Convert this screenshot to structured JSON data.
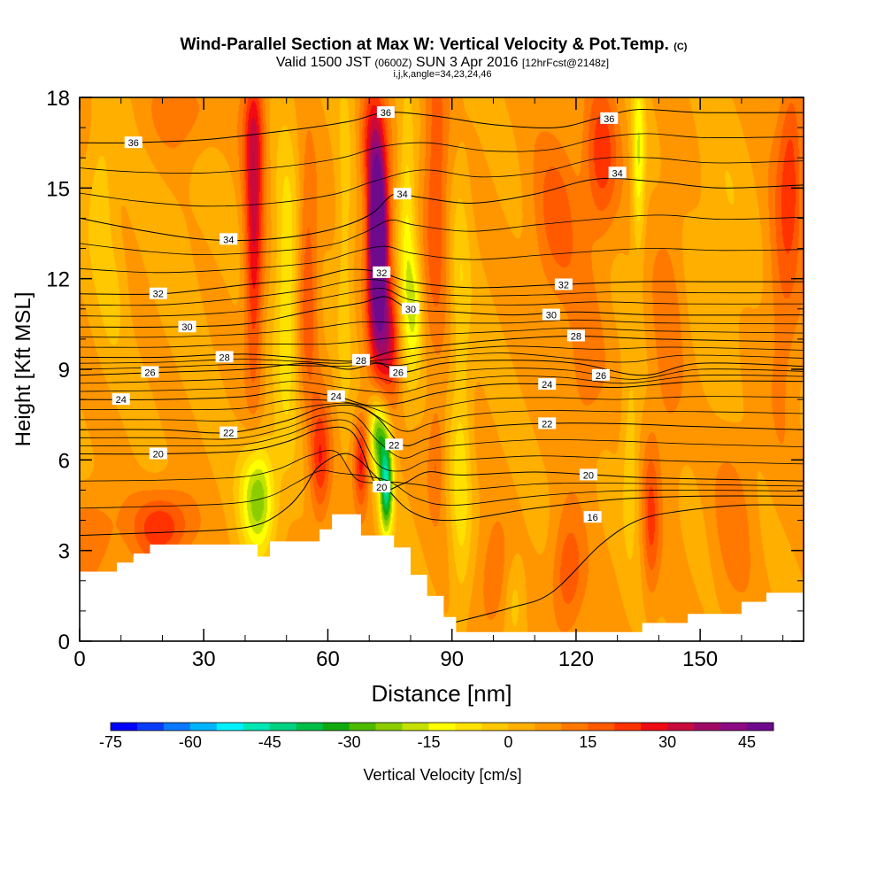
{
  "header": {
    "title_main": "Wind-Parallel Section at Max W: Vertical Velocity & Pot.Temp.",
    "title_mark": "(C)",
    "sub_a": "Valid 1500 JST",
    "sub_b": "(0600Z)",
    "sub_c": "SUN 3 Apr 2016",
    "sub_d": "[12hrFcst@2148z]",
    "sub_line2": "i,j,k,angle=34,23,24,46"
  },
  "chart_data": {
    "type": "heatmap",
    "xlabel": "Distance [nm]",
    "ylabel": "Height [Kft MSL]",
    "xlim": [
      0,
      175
    ],
    "ylim": [
      0,
      18
    ],
    "xticks": [
      0,
      30,
      60,
      90,
      120,
      150
    ],
    "yticks": [
      0,
      3,
      6,
      9,
      12,
      15,
      18
    ],
    "colorbar": {
      "label": "Vertical Velocity [cm/s]",
      "placement": "bottom",
      "tick_labels": [
        "-75",
        "-60",
        "-45",
        "-30",
        "-15",
        "0",
        "15",
        "30",
        "45"
      ],
      "tick_values": [
        -75,
        -60,
        -45,
        -30,
        -15,
        0,
        15,
        30,
        45
      ],
      "range": [
        -75,
        50
      ],
      "colors": [
        "#0000ff",
        "#0a3cff",
        "#0a78ff",
        "#00b4ff",
        "#00f0ff",
        "#00e6b4",
        "#00d282",
        "#00be46",
        "#10aa10",
        "#4eba00",
        "#8ccd00",
        "#c4e100",
        "#ffff00",
        "#ffe100",
        "#ffc800",
        "#ffaf00",
        "#ff9600",
        "#ff7800",
        "#ff5a00",
        "#ff3200",
        "#f00a14",
        "#c80a3c",
        "#a00a64",
        "#8c0a82",
        "#6e0a8c"
      ]
    },
    "terrain": [
      [
        0,
        2.3
      ],
      [
        7,
        2.3
      ],
      [
        9,
        2.6
      ],
      [
        13,
        2.9
      ],
      [
        17,
        3.2
      ],
      [
        40,
        3.2
      ],
      [
        43,
        2.8
      ],
      [
        46,
        3.3
      ],
      [
        55,
        3.3
      ],
      [
        58,
        3.7
      ],
      [
        61,
        4.2
      ],
      [
        66,
        4.2
      ],
      [
        68,
        3.5
      ],
      [
        72,
        3.5
      ],
      [
        76,
        3.1
      ],
      [
        80,
        2.2
      ],
      [
        84,
        1.5
      ],
      [
        88,
        0.8
      ],
      [
        91,
        0.3
      ],
      [
        133,
        0.3
      ],
      [
        136,
        0.6
      ],
      [
        147,
        0.9
      ],
      [
        160,
        1.3
      ],
      [
        166,
        1.6
      ],
      [
        175,
        1.6
      ]
    ],
    "contours": [
      {
        "label": "16",
        "points": [
          [
            90,
            0.6
          ],
          [
            104,
            1.1
          ],
          [
            114,
            1.6
          ],
          [
            126,
            3.2
          ],
          [
            135,
            4.0
          ],
          [
            145,
            4.3
          ],
          [
            160,
            4.5
          ],
          [
            175,
            4.5
          ]
        ],
        "label_at": [
          124,
          4.1
        ]
      },
      {
        "label": "18",
        "points": [
          [
            0,
            3.5
          ],
          [
            20,
            3.6
          ],
          [
            36,
            3.7
          ],
          [
            44,
            3.9
          ],
          [
            50,
            4.4
          ],
          [
            54,
            5.0
          ],
          [
            58,
            5.8
          ],
          [
            65,
            6.2
          ],
          [
            72,
            5.4
          ],
          [
            80,
            4.3
          ],
          [
            90,
            4.0
          ],
          [
            110,
            4.4
          ],
          [
            130,
            4.7
          ],
          [
            150,
            4.8
          ],
          [
            175,
            4.8
          ]
        ],
        "label_at": null
      },
      {
        "label": "20",
        "points": [
          [
            0,
            6.2
          ],
          [
            20,
            6.2
          ],
          [
            40,
            6.3
          ],
          [
            50,
            6.6
          ],
          [
            58,
            7.0
          ],
          [
            66,
            6.9
          ],
          [
            72,
            5.1
          ],
          [
            78,
            5.2
          ],
          [
            84,
            5.6
          ],
          [
            92,
            5.5
          ],
          [
            110,
            5.6
          ],
          [
            125,
            5.5
          ],
          [
            140,
            5.4
          ],
          [
            175,
            5.3
          ]
        ],
        "label_at": [
          73,
          5.1
        ]
      },
      {
        "label": "22",
        "points": [
          [
            0,
            7.0
          ],
          [
            20,
            7.0
          ],
          [
            36,
            6.9
          ],
          [
            50,
            7.3
          ],
          [
            58,
            7.7
          ],
          [
            66,
            7.8
          ],
          [
            72,
            7.4
          ],
          [
            78,
            6.5
          ],
          [
            84,
            6.7
          ],
          [
            92,
            7.0
          ],
          [
            110,
            7.2
          ],
          [
            130,
            7.2
          ],
          [
            150,
            7.1
          ],
          [
            175,
            7.0
          ]
        ],
        "label_at": [
          76,
          6.5
        ]
      },
      {
        "label": "24",
        "points": [
          [
            0,
            8.0
          ],
          [
            20,
            8.0
          ],
          [
            40,
            8.1
          ],
          [
            50,
            8.3
          ],
          [
            62,
            8.1
          ],
          [
            70,
            7.8
          ],
          [
            78,
            7.9
          ],
          [
            86,
            8.2
          ],
          [
            100,
            8.5
          ],
          [
            115,
            8.5
          ],
          [
            130,
            8.4
          ],
          [
            150,
            8.6
          ],
          [
            175,
            8.6
          ]
        ],
        "label_at": [
          62,
          8.1
        ]
      },
      {
        "label": "26",
        "points": [
          [
            0,
            8.8
          ],
          [
            20,
            8.9
          ],
          [
            40,
            9.0
          ],
          [
            55,
            9.2
          ],
          [
            65,
            9.0
          ],
          [
            72,
            9.2
          ],
          [
            78,
            8.9
          ],
          [
            88,
            9.2
          ],
          [
            104,
            9.3
          ],
          [
            120,
            9.2
          ],
          [
            136,
            8.8
          ],
          [
            150,
            9.2
          ],
          [
            175,
            9.1
          ]
        ],
        "label_at": [
          77,
          8.9
        ]
      },
      {
        "label": "28",
        "points": [
          [
            0,
            9.4
          ],
          [
            20,
            9.4
          ],
          [
            40,
            9.5
          ],
          [
            60,
            9.3
          ],
          [
            68,
            9.3
          ],
          [
            76,
            9.6
          ],
          [
            88,
            9.8
          ],
          [
            104,
            10.0
          ],
          [
            120,
            10.1
          ],
          [
            140,
            10.0
          ],
          [
            175,
            9.9
          ]
        ],
        "label_at": [
          68,
          9.3
        ]
      },
      {
        "label": "30",
        "points": [
          [
            0,
            10.4
          ],
          [
            20,
            10.4
          ],
          [
            40,
            10.5
          ],
          [
            55,
            10.9
          ],
          [
            68,
            11.2
          ],
          [
            74,
            11.4
          ],
          [
            80,
            11.0
          ],
          [
            90,
            10.9
          ],
          [
            105,
            10.8
          ],
          [
            120,
            10.9
          ],
          [
            140,
            10.8
          ],
          [
            175,
            10.8
          ]
        ],
        "label_at": [
          80,
          11.0
        ]
      },
      {
        "label": "32",
        "points": [
          [
            0,
            11.5
          ],
          [
            20,
            11.5
          ],
          [
            40,
            11.8
          ],
          [
            55,
            12.0
          ],
          [
            65,
            12.3
          ],
          [
            73,
            12.2
          ],
          [
            80,
            11.9
          ],
          [
            95,
            11.7
          ],
          [
            115,
            11.8
          ],
          [
            135,
            11.9
          ],
          [
            155,
            11.9
          ],
          [
            175,
            11.9
          ]
        ],
        "label_at": [
          73,
          12.2
        ]
      },
      {
        "label": "34",
        "points": [
          [
            0,
            14.0
          ],
          [
            15,
            13.6
          ],
          [
            30,
            13.3
          ],
          [
            45,
            13.3
          ],
          [
            60,
            13.6
          ],
          [
            70,
            14.1
          ],
          [
            76,
            14.8
          ],
          [
            82,
            14.7
          ],
          [
            95,
            14.5
          ],
          [
            110,
            14.8
          ],
          [
            125,
            15.3
          ],
          [
            140,
            15.2
          ],
          [
            155,
            15.0
          ],
          [
            175,
            15.1
          ]
        ],
        "label_at": [
          78,
          14.8
        ]
      },
      {
        "label": "36",
        "points": [
          [
            0,
            16.5
          ],
          [
            12,
            16.5
          ],
          [
            30,
            16.6
          ],
          [
            50,
            16.9
          ],
          [
            65,
            17.2
          ],
          [
            74,
            17.5
          ],
          [
            85,
            17.4
          ],
          [
            100,
            17.1
          ],
          [
            115,
            17.0
          ],
          [
            125,
            17.3
          ],
          [
            135,
            17.6
          ],
          [
            150,
            17.5
          ],
          [
            175,
            17.5
          ]
        ],
        "label_at": [
          13,
          16.5
        ]
      }
    ],
    "extra_labels": [
      {
        "text": "36",
        "at": [
          74,
          17.5
        ]
      },
      {
        "text": "36",
        "at": [
          128,
          17.3
        ]
      },
      {
        "text": "34",
        "at": [
          130,
          15.5
        ]
      },
      {
        "text": "34",
        "at": [
          36,
          13.3
        ]
      },
      {
        "text": "32",
        "at": [
          19,
          11.5
        ]
      },
      {
        "text": "32",
        "at": [
          117,
          11.8
        ]
      },
      {
        "text": "30",
        "at": [
          26,
          10.4
        ]
      },
      {
        "text": "30",
        "at": [
          114,
          10.8
        ]
      },
      {
        "text": "28",
        "at": [
          35,
          9.4
        ]
      },
      {
        "text": "28",
        "at": [
          120,
          10.1
        ]
      },
      {
        "text": "26",
        "at": [
          17,
          8.9
        ]
      },
      {
        "text": "26",
        "at": [
          126,
          8.8
        ]
      },
      {
        "text": "24",
        "at": [
          10,
          8.0
        ]
      },
      {
        "text": "24",
        "at": [
          113,
          8.5
        ]
      },
      {
        "text": "22",
        "at": [
          36,
          6.9
        ]
      },
      {
        "text": "22",
        "at": [
          113,
          7.2
        ]
      },
      {
        "text": "20",
        "at": [
          19,
          6.2
        ]
      },
      {
        "text": "20",
        "at": [
          123,
          5.5
        ]
      }
    ],
    "w_field": [
      {
        "x": 5,
        "y": 14.5,
        "w": -10,
        "sx": 3,
        "sy": 2.5
      },
      {
        "x": 8,
        "y": 11.5,
        "w": -6,
        "sx": 3,
        "sy": 2.0
      },
      {
        "x": 3,
        "y": 3.5,
        "w": 10,
        "sx": 6,
        "sy": 1.5
      },
      {
        "x": 20,
        "y": 3.8,
        "w": 20,
        "sx": 7,
        "sy": 1.2
      },
      {
        "x": 25,
        "y": 15,
        "w": -2,
        "sx": 10,
        "sy": 5
      },
      {
        "x": 25,
        "y": 17.5,
        "w": 10,
        "sx": 8,
        "sy": 1.5
      },
      {
        "x": 42,
        "y": 13.5,
        "w": 25,
        "sx": 2.2,
        "sy": 5
      },
      {
        "x": 42,
        "y": 17,
        "w": 12,
        "sx": 3,
        "sy": 2
      },
      {
        "x": 43,
        "y": 4.8,
        "w": -30,
        "sx": 4,
        "sy": 1.8
      },
      {
        "x": 50,
        "y": 11.5,
        "w": -15,
        "sx": 3,
        "sy": 5
      },
      {
        "x": 55,
        "y": 12,
        "w": 15,
        "sx": 2.5,
        "sy": 4
      },
      {
        "x": 58,
        "y": 6.0,
        "w": 20,
        "sx": 2.5,
        "sy": 2
      },
      {
        "x": 64,
        "y": 13,
        "w": -8,
        "sx": 2,
        "sy": 6
      },
      {
        "x": 68,
        "y": 6.0,
        "w": 22,
        "sx": 1.8,
        "sy": 1.5
      },
      {
        "x": 72,
        "y": 14,
        "w": 48,
        "sx": 2.2,
        "sy": 2
      },
      {
        "x": 72,
        "y": 11.5,
        "w": 40,
        "sx": 2.5,
        "sy": 2.5
      },
      {
        "x": 71,
        "y": 16.5,
        "w": 25,
        "sx": 3,
        "sy": 2
      },
      {
        "x": 75,
        "y": 10,
        "w": 20,
        "sx": 2.5,
        "sy": 2
      },
      {
        "x": 74,
        "y": 5.2,
        "w": -50,
        "sx": 1.6,
        "sy": 1.6
      },
      {
        "x": 72,
        "y": 6.8,
        "w": -30,
        "sx": 2,
        "sy": 1.2
      },
      {
        "x": 79,
        "y": 13,
        "w": -18,
        "sx": 2,
        "sy": 4
      },
      {
        "x": 81,
        "y": 11,
        "w": -15,
        "sx": 1.8,
        "sy": 2
      },
      {
        "x": 86,
        "y": 15,
        "w": 15,
        "sx": 3,
        "sy": 5
      },
      {
        "x": 86,
        "y": 6,
        "w": 10,
        "sx": 2,
        "sy": 2
      },
      {
        "x": 92,
        "y": 5,
        "w": -12,
        "sx": 2.5,
        "sy": 4
      },
      {
        "x": 92,
        "y": 12,
        "w": -8,
        "sx": 2.5,
        "sy": 4
      },
      {
        "x": 100,
        "y": 2,
        "w": 10,
        "sx": 4,
        "sy": 2
      },
      {
        "x": 105,
        "y": 1.5,
        "w": -8,
        "sx": 2.5,
        "sy": 1.5
      },
      {
        "x": 115,
        "y": 14,
        "w": 12,
        "sx": 6,
        "sy": 3
      },
      {
        "x": 118,
        "y": 2.2,
        "w": 15,
        "sx": 4,
        "sy": 2
      },
      {
        "x": 122,
        "y": 9,
        "w": 8,
        "sx": 5,
        "sy": 3
      },
      {
        "x": 126,
        "y": 16,
        "w": 18,
        "sx": 4,
        "sy": 2.5
      },
      {
        "x": 135,
        "y": 16,
        "w": -20,
        "sx": 1.5,
        "sy": 3
      },
      {
        "x": 133,
        "y": 6,
        "w": -10,
        "sx": 2,
        "sy": 3
      },
      {
        "x": 138,
        "y": 4,
        "w": 15,
        "sx": 2,
        "sy": 2.5
      },
      {
        "x": 142,
        "y": 10,
        "w": 8,
        "sx": 4,
        "sy": 5
      },
      {
        "x": 155,
        "y": 13,
        "w": -5,
        "sx": 6,
        "sy": 4
      },
      {
        "x": 158,
        "y": 4,
        "w": 8,
        "sx": 5,
        "sy": 3
      },
      {
        "x": 170,
        "y": 12,
        "w": 10,
        "sx": 4,
        "sy": 5
      },
      {
        "x": 172,
        "y": 16,
        "w": 14,
        "sx": 3,
        "sy": 3
      }
    ]
  }
}
